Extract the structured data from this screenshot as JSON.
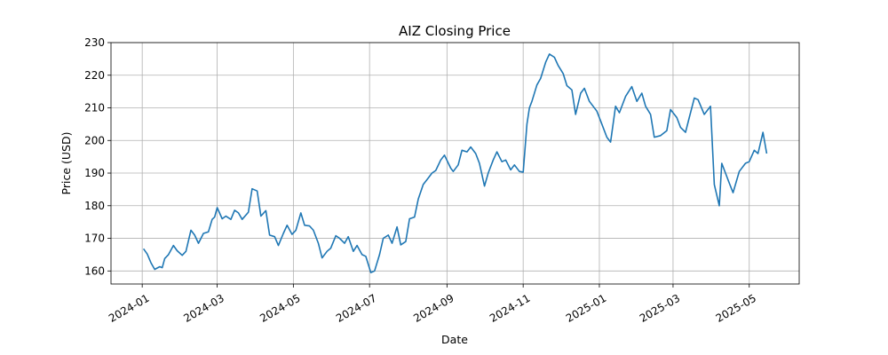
{
  "chart_data": {
    "type": "line",
    "title": "AIZ Closing Price",
    "xlabel": "Date",
    "ylabel": "Price (USD)",
    "xlim": [
      "2023-12-07",
      "2025-06-10"
    ],
    "ylim": [
      156,
      230
    ],
    "grid": true,
    "legend": "none",
    "line_color": "#1f77b4",
    "x_ticks": [
      {
        "date": "2024-01-01",
        "label": "2024-01"
      },
      {
        "date": "2024-03-01",
        "label": "2024-03"
      },
      {
        "date": "2024-05-01",
        "label": "2024-05"
      },
      {
        "date": "2024-07-01",
        "label": "2024-07"
      },
      {
        "date": "2024-09-01",
        "label": "2024-09"
      },
      {
        "date": "2024-11-01",
        "label": "2024-11"
      },
      {
        "date": "2025-01-01",
        "label": "2025-01"
      },
      {
        "date": "2025-03-01",
        "label": "2025-03"
      },
      {
        "date": "2025-05-01",
        "label": "2025-05"
      }
    ],
    "y_ticks": [
      160,
      170,
      180,
      190,
      200,
      210,
      220,
      230
    ],
    "series": [
      {
        "x": [
          "2024-01-02",
          "2024-01-05",
          "2024-01-08",
          "2024-01-11",
          "2024-01-15",
          "2024-01-17",
          "2024-01-19",
          "2024-01-22",
          "2024-01-26",
          "2024-01-29",
          "2024-02-02",
          "2024-02-05",
          "2024-02-09",
          "2024-02-12",
          "2024-02-15",
          "2024-02-19",
          "2024-02-23",
          "2024-02-26",
          "2024-02-28",
          "2024-03-01",
          "2024-03-05",
          "2024-03-08",
          "2024-03-12",
          "2024-03-15",
          "2024-03-18",
          "2024-03-21",
          "2024-03-26",
          "2024-03-29",
          "2024-04-02",
          "2024-04-05",
          "2024-04-09",
          "2024-04-12",
          "2024-04-16",
          "2024-04-19",
          "2024-04-23",
          "2024-04-26",
          "2024-04-30",
          "2024-05-03",
          "2024-05-07",
          "2024-05-10",
          "2024-05-14",
          "2024-05-17",
          "2024-05-21",
          "2024-05-24",
          "2024-05-28",
          "2024-05-31",
          "2024-06-04",
          "2024-06-07",
          "2024-06-11",
          "2024-06-14",
          "2024-06-18",
          "2024-06-21",
          "2024-06-25",
          "2024-06-28",
          "2024-07-02",
          "2024-07-05",
          "2024-07-09",
          "2024-07-12",
          "2024-07-16",
          "2024-07-19",
          "2024-07-23",
          "2024-07-26",
          "2024-07-30",
          "2024-08-02",
          "2024-08-06",
          "2024-08-09",
          "2024-08-13",
          "2024-08-16",
          "2024-08-20",
          "2024-08-23",
          "2024-08-27",
          "2024-08-30",
          "2024-09-04",
          "2024-09-06",
          "2024-09-10",
          "2024-09-13",
          "2024-09-17",
          "2024-09-20",
          "2024-09-24",
          "2024-09-27",
          "2024-10-01",
          "2024-10-04",
          "2024-10-08",
          "2024-10-11",
          "2024-10-15",
          "2024-10-18",
          "2024-10-22",
          "2024-10-25",
          "2024-10-29",
          "2024-11-01",
          "2024-11-04",
          "2024-11-06",
          "2024-11-08",
          "2024-11-12",
          "2024-11-15",
          "2024-11-19",
          "2024-11-22",
          "2024-11-26",
          "2024-11-29",
          "2024-12-03",
          "2024-12-06",
          "2024-12-10",
          "2024-12-13",
          "2024-12-17",
          "2024-12-20",
          "2024-12-24",
          "2024-12-30",
          "2025-01-03",
          "2025-01-07",
          "2025-01-10",
          "2025-01-14",
          "2025-01-17",
          "2025-01-22",
          "2025-01-27",
          "2025-01-31",
          "2025-02-04",
          "2025-02-07",
          "2025-02-11",
          "2025-02-14",
          "2025-02-19",
          "2025-02-24",
          "2025-02-27",
          "2025-03-04",
          "2025-03-07",
          "2025-03-11",
          "2025-03-14",
          "2025-03-18",
          "2025-03-21",
          "2025-03-26",
          "2025-03-31",
          "2025-04-03",
          "2025-04-07",
          "2025-04-09",
          "2025-04-11",
          "2025-04-15",
          "2025-04-18",
          "2025-04-23",
          "2025-04-28",
          "2025-05-01",
          "2025-05-05",
          "2025-05-08",
          "2025-05-12",
          "2025-05-15"
        ],
        "values": [
          166.8,
          165.2,
          162.5,
          160.5,
          161.3,
          161.0,
          163.8,
          165.0,
          167.8,
          166.2,
          164.8,
          166.0,
          172.5,
          171.0,
          168.5,
          171.5,
          172.0,
          175.8,
          176.5,
          179.4,
          176.0,
          176.8,
          175.8,
          178.6,
          177.8,
          175.8,
          178.0,
          185.2,
          184.5,
          176.8,
          178.5,
          171.0,
          170.5,
          167.8,
          171.5,
          174.0,
          171.2,
          172.5,
          177.8,
          174.0,
          173.8,
          172.5,
          168.5,
          164.0,
          166.0,
          167.0,
          170.8,
          170.0,
          168.5,
          170.5,
          166.0,
          167.8,
          165.0,
          164.5,
          159.5,
          160.0,
          165.0,
          170.0,
          171.0,
          168.5,
          173.5,
          168.0,
          169.0,
          176.0,
          176.5,
          182.0,
          186.5,
          188.0,
          190.0,
          190.8,
          194.0,
          195.5,
          191.5,
          190.5,
          192.5,
          197.0,
          196.5,
          198.0,
          196.0,
          193.0,
          186.0,
          190.0,
          194.0,
          196.5,
          193.5,
          194.0,
          191.0,
          192.5,
          190.5,
          190.3,
          205.0,
          210.0,
          212.0,
          217.0,
          219.0,
          224.0,
          226.5,
          225.5,
          223.0,
          220.5,
          216.8,
          215.5,
          208.0,
          214.5,
          216.0,
          212.0,
          209.0,
          205.0,
          201.0,
          199.5,
          210.5,
          208.5,
          213.5,
          216.5,
          212.0,
          214.5,
          210.5,
          208.0,
          201.0,
          201.5,
          203.0,
          209.5,
          207.0,
          204.0,
          202.5,
          207.0,
          213.0,
          212.5,
          208.0,
          210.5,
          186.5,
          180.0,
          193.0,
          191.0,
          187.0,
          184.0,
          190.5,
          193.0,
          193.5,
          197.0,
          196.0,
          202.5,
          196.0
        ]
      }
    ]
  }
}
